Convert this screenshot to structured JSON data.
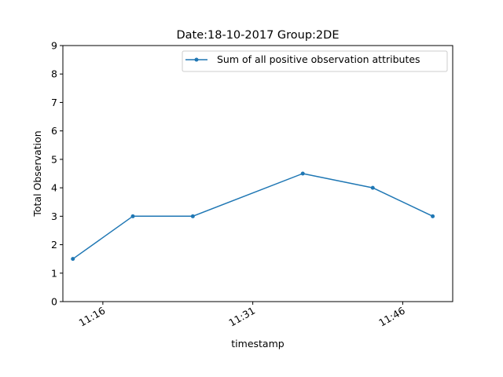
{
  "chart_data": {
    "type": "line",
    "title": "Date:18-10-2017  Group:2DE",
    "xlabel": "timestamp",
    "ylabel": "Total Observation",
    "x": [
      "11:13",
      "11:19",
      "11:25",
      "11:36",
      "11:43",
      "11:49"
    ],
    "series": [
      {
        "name": "Sum of all positive observation attributes",
        "values": [
          1.5,
          3,
          3,
          4.5,
          4,
          3
        ],
        "color": "#1f77b4"
      }
    ],
    "xlim": [
      "11:12",
      "11:51"
    ],
    "ylim": [
      0,
      9
    ],
    "xticks": [
      "11:16",
      "11:31",
      "11:46"
    ],
    "yticks": [
      0,
      1,
      2,
      3,
      4,
      5,
      6,
      7,
      8,
      9
    ],
    "grid": false,
    "legend": "top-right"
  }
}
